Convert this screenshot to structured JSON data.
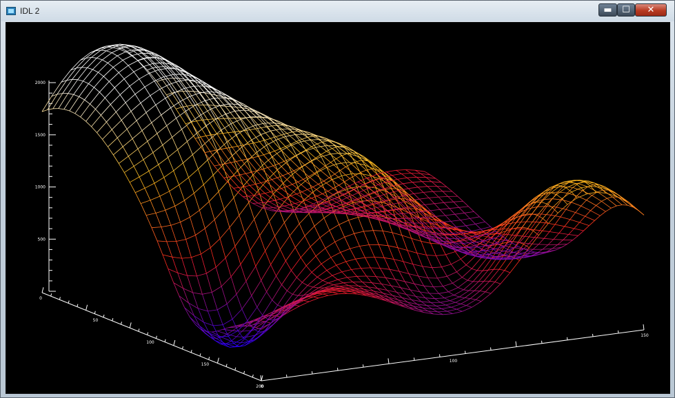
{
  "window": {
    "title": "IDL 2",
    "controls": {
      "minimize": "▬",
      "maximize": "☐",
      "close": "✕"
    }
  },
  "chart_data": {
    "type": "surface",
    "z_ticks": [
      "2000",
      "1500",
      "1000",
      "500"
    ],
    "x_ticks": [
      "0",
      "100",
      "150"
    ],
    "y_ticks": [
      "0",
      "50",
      "100",
      "150",
      "200"
    ],
    "colors": {
      "low": "#1010ff",
      "mid": "#ff2a10",
      "high": "#ffffff"
    }
  }
}
